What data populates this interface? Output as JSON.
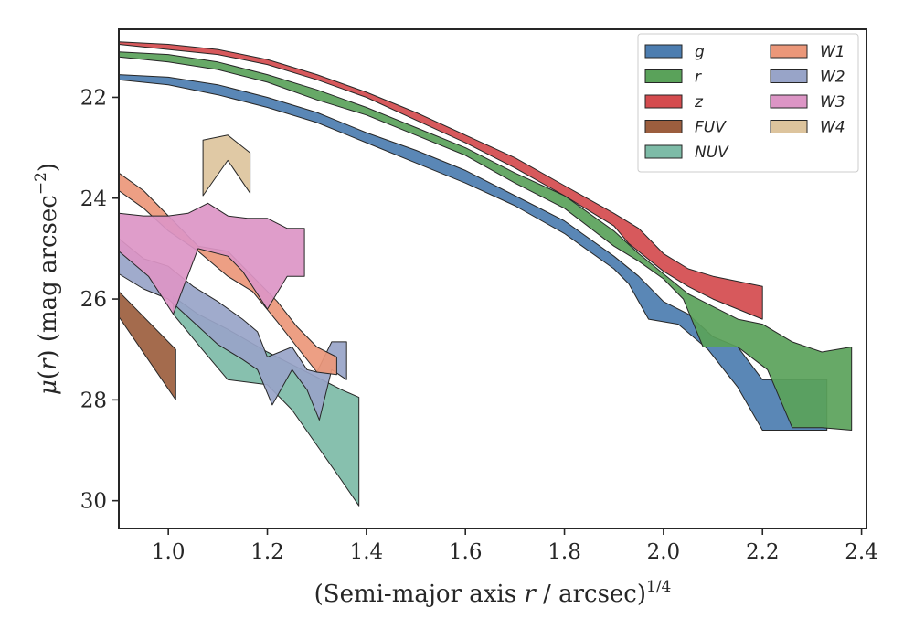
{
  "chart_data": {
    "type": "area",
    "title": "",
    "xlabel": "(Semi-major axis r / arcsec)",
    "xlabel_parts": {
      "pre": "(Semi-major axis ",
      "var": "r",
      "post": " / arcsec)",
      "sup": "1/4"
    },
    "ylabel": "μ(r) (mag arcsec⁻²)",
    "ylabel_parts": {
      "var1": "μ",
      "open": "(",
      "var2": "r",
      "close": ")",
      "unit": " (mag arcsec",
      "sup": "−2",
      "unit_close": ")"
    },
    "xlim": [
      0.9,
      2.41
    ],
    "ylim": [
      20.65,
      30.55
    ],
    "y_inverted": true,
    "grid": false,
    "legend_position": "top-right",
    "legend_columns": 2,
    "x_ticks": [
      "1.0",
      "1.2",
      "1.4",
      "1.6",
      "1.8",
      "2.0",
      "2.2",
      "2.4"
    ],
    "y_ticks": [
      "22",
      "24",
      "26",
      "28",
      "30"
    ],
    "series": [
      {
        "name": "W4",
        "color": "#ddc49d",
        "upper": [
          [
            1.07,
            22.85
          ],
          [
            1.12,
            22.75
          ],
          [
            1.165,
            23.1
          ]
        ],
        "lower": [
          [
            1.07,
            23.95
          ],
          [
            1.12,
            23.25
          ],
          [
            1.165,
            23.9
          ]
        ]
      },
      {
        "name": "FUV",
        "color": "#9c5e3e",
        "upper": [
          [
            0.9,
            25.85
          ],
          [
            1.015,
            27.0
          ]
        ],
        "lower": [
          [
            0.9,
            26.35
          ],
          [
            1.015,
            28.0
          ]
        ]
      },
      {
        "name": "NUV",
        "color": "#7dbba7",
        "upper": [
          [
            1.01,
            25.95
          ],
          [
            1.06,
            26.3
          ],
          [
            1.12,
            26.6
          ],
          [
            1.2,
            27.05
          ],
          [
            1.25,
            27.3
          ],
          [
            1.3,
            27.55
          ],
          [
            1.35,
            27.8
          ],
          [
            1.385,
            27.95
          ]
        ],
        "lower": [
          [
            1.01,
            26.3
          ],
          [
            1.06,
            26.9
          ],
          [
            1.12,
            27.6
          ],
          [
            1.2,
            27.7
          ],
          [
            1.25,
            28.2
          ],
          [
            1.3,
            28.9
          ],
          [
            1.35,
            29.6
          ],
          [
            1.385,
            30.1
          ]
        ]
      },
      {
        "name": "W2",
        "color": "#98a4c8",
        "upper": [
          [
            0.9,
            24.8
          ],
          [
            0.95,
            25.2
          ],
          [
            1.0,
            25.35
          ],
          [
            1.05,
            25.75
          ],
          [
            1.1,
            26.05
          ],
          [
            1.15,
            26.4
          ],
          [
            1.18,
            26.65
          ],
          [
            1.2,
            27.15
          ],
          [
            1.25,
            26.95
          ],
          [
            1.28,
            27.4
          ],
          [
            1.3,
            27.45
          ],
          [
            1.33,
            26.85
          ],
          [
            1.36,
            26.85
          ]
        ],
        "lower": [
          [
            0.9,
            25.5
          ],
          [
            0.95,
            25.8
          ],
          [
            1.0,
            26.0
          ],
          [
            1.05,
            26.45
          ],
          [
            1.1,
            26.9
          ],
          [
            1.15,
            27.2
          ],
          [
            1.18,
            27.4
          ],
          [
            1.21,
            28.1
          ],
          [
            1.25,
            27.4
          ],
          [
            1.28,
            27.8
          ],
          [
            1.305,
            28.4
          ],
          [
            1.33,
            27.4
          ],
          [
            1.36,
            27.6
          ]
        ]
      },
      {
        "name": "W1",
        "color": "#eb9779",
        "upper": [
          [
            0.9,
            23.5
          ],
          [
            0.95,
            23.85
          ],
          [
            1.0,
            24.35
          ],
          [
            1.06,
            24.95
          ],
          [
            1.12,
            25.05
          ],
          [
            1.17,
            25.55
          ],
          [
            1.22,
            26.05
          ],
          [
            1.26,
            26.55
          ],
          [
            1.3,
            26.95
          ],
          [
            1.34,
            27.15
          ]
        ],
        "lower": [
          [
            0.9,
            23.85
          ],
          [
            0.95,
            24.2
          ],
          [
            1.0,
            24.65
          ],
          [
            1.06,
            25.05
          ],
          [
            1.12,
            25.55
          ],
          [
            1.17,
            25.85
          ],
          [
            1.22,
            26.45
          ],
          [
            1.26,
            26.95
          ],
          [
            1.3,
            27.45
          ],
          [
            1.34,
            27.5
          ]
        ]
      },
      {
        "name": "W3",
        "color": "#dc95c5",
        "upper": [
          [
            0.9,
            24.3
          ],
          [
            0.95,
            24.35
          ],
          [
            1.0,
            24.35
          ],
          [
            1.04,
            24.3
          ],
          [
            1.08,
            24.1
          ],
          [
            1.12,
            24.35
          ],
          [
            1.16,
            24.4
          ],
          [
            1.2,
            24.4
          ],
          [
            1.24,
            24.6
          ],
          [
            1.275,
            24.6
          ]
        ],
        "lower": [
          [
            0.9,
            25.05
          ],
          [
            0.96,
            25.55
          ],
          [
            1.01,
            26.3
          ],
          [
            1.06,
            25.0
          ],
          [
            1.12,
            25.15
          ],
          [
            1.15,
            25.45
          ],
          [
            1.2,
            26.2
          ],
          [
            1.24,
            25.55
          ],
          [
            1.275,
            25.55
          ]
        ]
      },
      {
        "name": "g",
        "color": "#4c7db0",
        "upper": [
          [
            0.9,
            21.55
          ],
          [
            1.0,
            21.6
          ],
          [
            1.1,
            21.75
          ],
          [
            1.2,
            22.0
          ],
          [
            1.3,
            22.3
          ],
          [
            1.4,
            22.7
          ],
          [
            1.5,
            23.05
          ],
          [
            1.6,
            23.45
          ],
          [
            1.7,
            23.95
          ],
          [
            1.8,
            24.45
          ],
          [
            1.9,
            25.15
          ],
          [
            1.95,
            25.55
          ],
          [
            2.0,
            26.05
          ],
          [
            2.05,
            26.3
          ],
          [
            2.1,
            26.75
          ],
          [
            2.15,
            26.95
          ],
          [
            2.2,
            27.6
          ],
          [
            2.33,
            27.6
          ]
        ],
        "lower": [
          [
            0.9,
            21.65
          ],
          [
            1.0,
            21.75
          ],
          [
            1.1,
            21.95
          ],
          [
            1.2,
            22.2
          ],
          [
            1.3,
            22.5
          ],
          [
            1.4,
            22.9
          ],
          [
            1.5,
            23.3
          ],
          [
            1.6,
            23.7
          ],
          [
            1.7,
            24.15
          ],
          [
            1.8,
            24.7
          ],
          [
            1.9,
            25.4
          ],
          [
            1.93,
            25.7
          ],
          [
            1.97,
            26.4
          ],
          [
            2.03,
            26.5
          ],
          [
            2.09,
            27.0
          ],
          [
            2.15,
            27.75
          ],
          [
            2.2,
            28.6
          ],
          [
            2.33,
            28.6
          ]
        ]
      },
      {
        "name": "r",
        "color": "#5aa25a",
        "upper": [
          [
            0.9,
            21.1
          ],
          [
            1.0,
            21.15
          ],
          [
            1.1,
            21.3
          ],
          [
            1.2,
            21.55
          ],
          [
            1.3,
            21.85
          ],
          [
            1.4,
            22.2
          ],
          [
            1.5,
            22.6
          ],
          [
            1.6,
            23.0
          ],
          [
            1.7,
            23.5
          ],
          [
            1.8,
            23.95
          ],
          [
            1.9,
            24.65
          ],
          [
            1.95,
            25.1
          ],
          [
            2.0,
            25.5
          ],
          [
            2.05,
            25.9
          ],
          [
            2.1,
            26.15
          ],
          [
            2.15,
            26.4
          ],
          [
            2.2,
            26.5
          ],
          [
            2.26,
            26.85
          ],
          [
            2.32,
            27.05
          ],
          [
            2.38,
            26.95
          ]
        ],
        "lower": [
          [
            0.9,
            21.2
          ],
          [
            1.0,
            21.3
          ],
          [
            1.1,
            21.45
          ],
          [
            1.2,
            21.7
          ],
          [
            1.3,
            22.05
          ],
          [
            1.4,
            22.35
          ],
          [
            1.5,
            22.75
          ],
          [
            1.6,
            23.15
          ],
          [
            1.7,
            23.7
          ],
          [
            1.8,
            24.2
          ],
          [
            1.9,
            24.95
          ],
          [
            1.95,
            25.25
          ],
          [
            2.0,
            25.6
          ],
          [
            2.04,
            26.0
          ],
          [
            2.08,
            26.95
          ],
          [
            2.15,
            26.95
          ],
          [
            2.21,
            27.4
          ],
          [
            2.26,
            28.55
          ],
          [
            2.32,
            28.55
          ],
          [
            2.38,
            28.6
          ]
        ]
      },
      {
        "name": "z",
        "color": "#d44b4e",
        "upper": [
          [
            0.9,
            20.9
          ],
          [
            1.0,
            20.95
          ],
          [
            1.1,
            21.05
          ],
          [
            1.2,
            21.25
          ],
          [
            1.3,
            21.55
          ],
          [
            1.4,
            21.9
          ],
          [
            1.5,
            22.3
          ],
          [
            1.6,
            22.75
          ],
          [
            1.7,
            23.2
          ],
          [
            1.8,
            23.75
          ],
          [
            1.9,
            24.3
          ],
          [
            1.95,
            24.6
          ],
          [
            2.0,
            25.1
          ],
          [
            2.05,
            25.4
          ],
          [
            2.1,
            25.55
          ],
          [
            2.15,
            25.65
          ],
          [
            2.2,
            25.75
          ]
        ],
        "lower": [
          [
            0.9,
            20.95
          ],
          [
            1.0,
            21.05
          ],
          [
            1.1,
            21.15
          ],
          [
            1.2,
            21.35
          ],
          [
            1.3,
            21.65
          ],
          [
            1.4,
            22.0
          ],
          [
            1.5,
            22.45
          ],
          [
            1.6,
            22.9
          ],
          [
            1.7,
            23.4
          ],
          [
            1.8,
            23.95
          ],
          [
            1.9,
            24.55
          ],
          [
            1.93,
            24.9
          ],
          [
            2.0,
            25.45
          ],
          [
            2.05,
            25.75
          ],
          [
            2.1,
            26.0
          ],
          [
            2.15,
            26.2
          ],
          [
            2.2,
            26.4
          ]
        ]
      }
    ],
    "legend": [
      "g",
      "r",
      "z",
      "FUV",
      "NUV",
      "W1",
      "W2",
      "W3",
      "W4"
    ]
  }
}
